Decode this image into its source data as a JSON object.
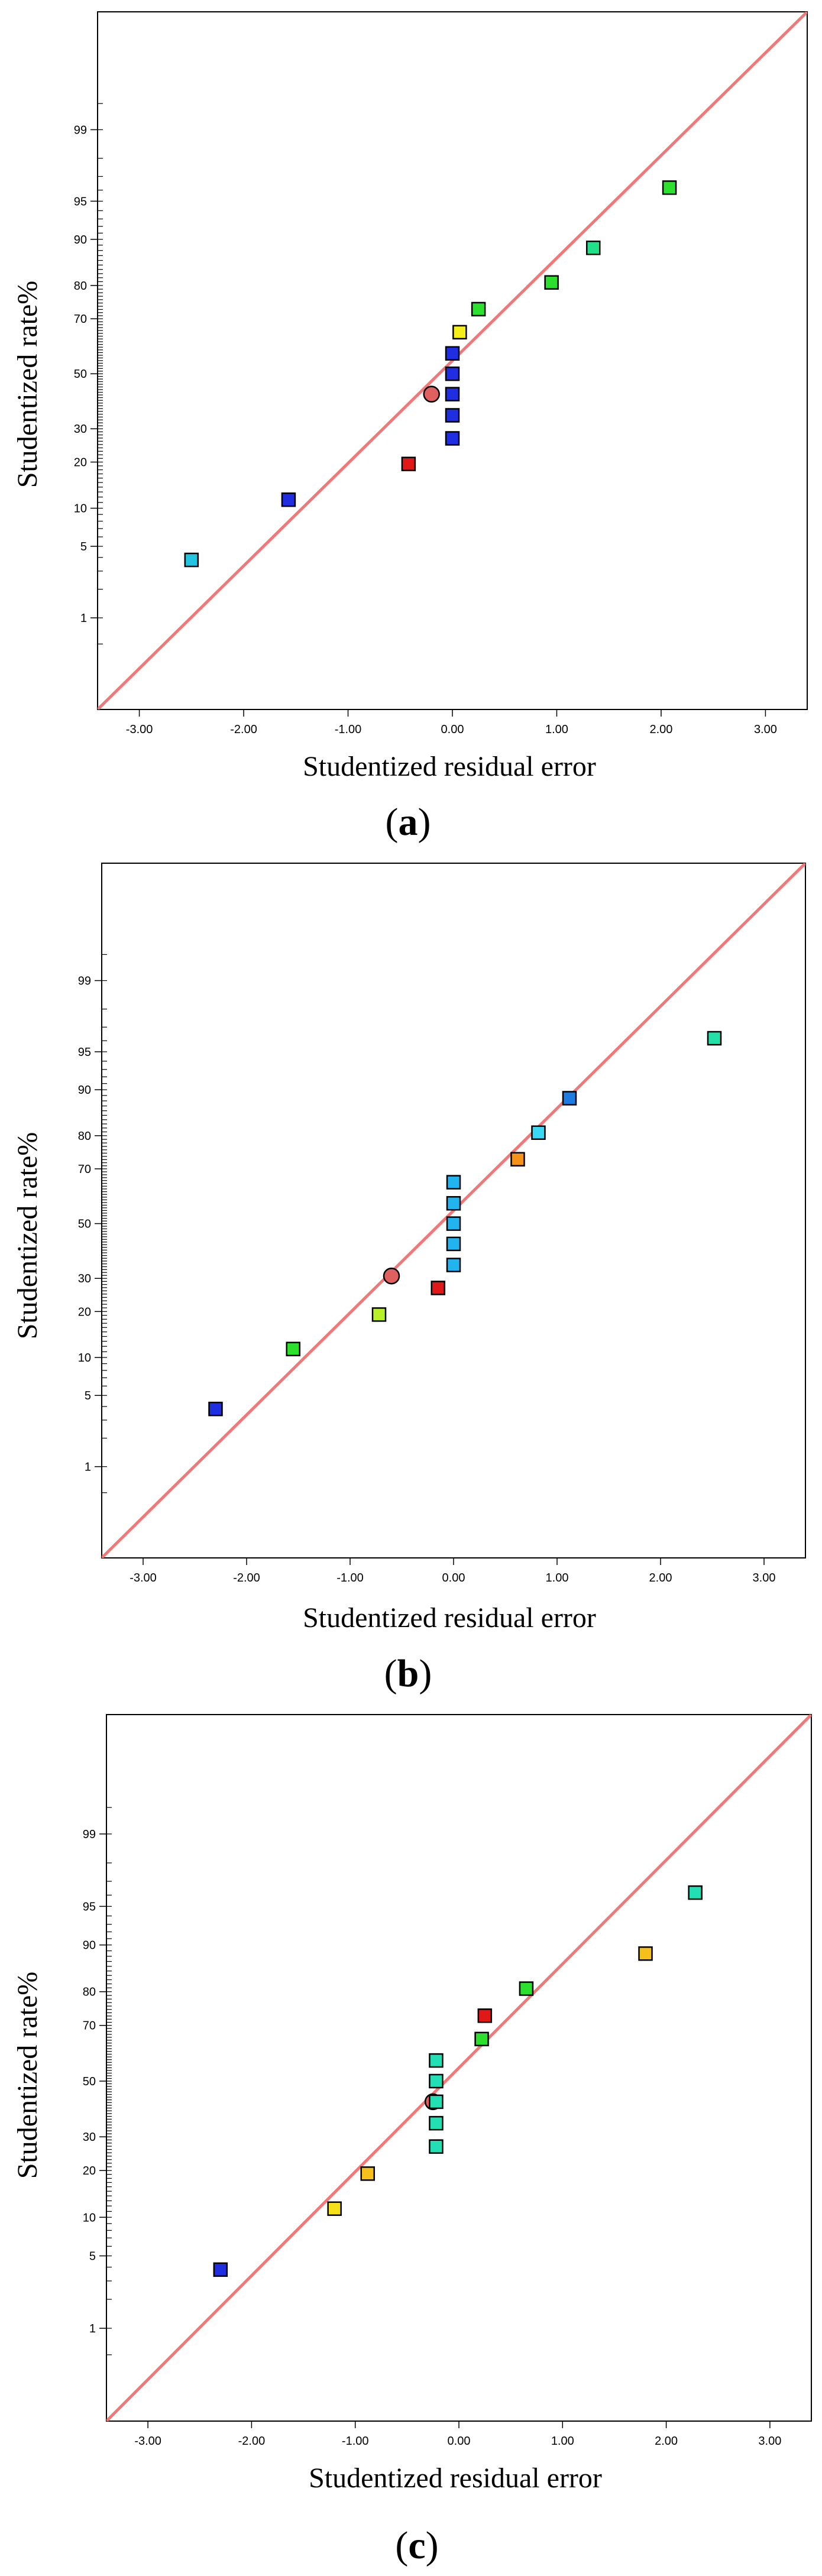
{
  "chart_data": [
    {
      "type": "scatter",
      "panel_label": "a",
      "xlabel": "Studentized residual error",
      "ylabel": "Studentized rate%",
      "xlim": [
        -3.4,
        3.4
      ],
      "x_ticks": [
        -3,
        -2,
        -1,
        0,
        1,
        2,
        3
      ],
      "x_tick_labels": [
        "-3.00",
        "-2.00",
        "-1.00",
        "0.00",
        "1.00",
        "2.00",
        "3.00"
      ],
      "y_ticks": [
        1,
        5,
        10,
        20,
        30,
        50,
        70,
        80,
        90,
        95,
        99
      ],
      "y_tick_labels": [
        "1",
        "5",
        "10",
        "20",
        "30",
        "50",
        "70",
        "80",
        "90",
        "95",
        "99"
      ],
      "fit_line": {
        "x": [
          -3.4,
          3.4
        ],
        "y": [
          -3.2,
          3.45
        ],
        "color": "#f07878"
      },
      "points": [
        {
          "x": -2.5,
          "y": 3.8,
          "color": "#22c4e0",
          "marker": "square"
        },
        {
          "x": -1.57,
          "y": 11.5,
          "color": "#1e2ee0",
          "marker": "square"
        },
        {
          "x": -0.42,
          "y": 19.5,
          "color": "#e01818",
          "marker": "square"
        },
        {
          "x": -0.2,
          "y": 42.3,
          "color": "#e06060",
          "marker": "circle"
        },
        {
          "x": 0.0,
          "y": 26.9,
          "color": "#1e2ee0",
          "marker": "square"
        },
        {
          "x": 0.0,
          "y": 34.6,
          "color": "#1e2ee0",
          "marker": "square"
        },
        {
          "x": 0.0,
          "y": 42.3,
          "color": "#1e2ee0",
          "marker": "square"
        },
        {
          "x": 0.0,
          "y": 50.0,
          "color": "#1e2ee0",
          "marker": "square"
        },
        {
          "x": 0.0,
          "y": 57.7,
          "color": "#1e2ee0",
          "marker": "square"
        },
        {
          "x": 0.07,
          "y": 65.4,
          "color": "#f5ef1a",
          "marker": "square"
        },
        {
          "x": 0.25,
          "y": 73.1,
          "color": "#2ee02e",
          "marker": "square"
        },
        {
          "x": 0.95,
          "y": 80.8,
          "color": "#2ee02e",
          "marker": "square"
        },
        {
          "x": 1.35,
          "y": 88.5,
          "color": "#22e08a",
          "marker": "square"
        },
        {
          "x": 2.08,
          "y": 96.2,
          "color": "#2ee02e",
          "marker": "square"
        }
      ]
    },
    {
      "type": "scatter",
      "panel_label": "b",
      "xlabel": "Studentized residual error",
      "ylabel": "Studentized rate%",
      "xlim": [
        -3.4,
        3.4
      ],
      "x_ticks": [
        -3,
        -2,
        -1,
        0,
        1,
        2,
        3
      ],
      "x_tick_labels": [
        "-3.00",
        "-2.00",
        "-1.00",
        "0.00",
        "1.00",
        "2.00",
        "3.00"
      ],
      "y_ticks": [
        1,
        5,
        10,
        20,
        30,
        50,
        70,
        80,
        90,
        95,
        99
      ],
      "y_tick_labels": [
        "1",
        "5",
        "10",
        "20",
        "30",
        "50",
        "70",
        "80",
        "90",
        "95",
        "99"
      ],
      "fit_line": {
        "x": [
          -3.4,
          3.4
        ],
        "y": [
          -3.2,
          3.45
        ],
        "color": "#f07878"
      },
      "points": [
        {
          "x": -2.3,
          "y": 3.8,
          "color": "#1e2ee0",
          "marker": "square"
        },
        {
          "x": -1.55,
          "y": 11.5,
          "color": "#2ee02e",
          "marker": "square"
        },
        {
          "x": -0.72,
          "y": 19.2,
          "color": "#b8f02a",
          "marker": "square"
        },
        {
          "x": -0.6,
          "y": 30.8,
          "color": "#e06060",
          "marker": "circle"
        },
        {
          "x": -0.15,
          "y": 26.9,
          "color": "#e01818",
          "marker": "square"
        },
        {
          "x": 0.0,
          "y": 34.6,
          "color": "#22b4ee",
          "marker": "square"
        },
        {
          "x": 0.0,
          "y": 42.3,
          "color": "#22b4ee",
          "marker": "square"
        },
        {
          "x": 0.0,
          "y": 50.0,
          "color": "#22b4ee",
          "marker": "square"
        },
        {
          "x": 0.0,
          "y": 57.7,
          "color": "#22b4ee",
          "marker": "square"
        },
        {
          "x": 0.0,
          "y": 65.4,
          "color": "#22b4ee",
          "marker": "square"
        },
        {
          "x": 0.62,
          "y": 73.1,
          "color": "#f5921a",
          "marker": "square"
        },
        {
          "x": 0.82,
          "y": 80.8,
          "color": "#3ad8f2",
          "marker": "square"
        },
        {
          "x": 1.12,
          "y": 88.5,
          "color": "#1e7ce0",
          "marker": "square"
        },
        {
          "x": 2.52,
          "y": 96.2,
          "color": "#22e0a8",
          "marker": "square"
        }
      ]
    },
    {
      "type": "scatter",
      "panel_label": "c",
      "xlabel": "Studentized residual error",
      "ylabel": "Studentized rate%",
      "xlim": [
        -3.4,
        3.4
      ],
      "x_ticks": [
        -3,
        -2,
        -1,
        0,
        1,
        2,
        3
      ],
      "x_tick_labels": [
        "-3.00",
        "-2.00",
        "-1.00",
        "0.00",
        "1.00",
        "2.00",
        "3.00"
      ],
      "y_ticks": [
        1,
        5,
        10,
        20,
        30,
        50,
        70,
        80,
        90,
        95,
        99
      ],
      "y_tick_labels": [
        "1",
        "5",
        "10",
        "20",
        "30",
        "50",
        "70",
        "80",
        "90",
        "95",
        "99"
      ],
      "fit_line": {
        "x": [
          -3.4,
          3.4
        ],
        "y": [
          -3.2,
          3.45
        ],
        "color": "#f07878"
      },
      "points": [
        {
          "x": -2.3,
          "y": 3.8,
          "color": "#1e2ee0",
          "marker": "square"
        },
        {
          "x": -1.2,
          "y": 11.5,
          "color": "#f5e01a",
          "marker": "square"
        },
        {
          "x": -0.88,
          "y": 19.2,
          "color": "#f5c01a",
          "marker": "square"
        },
        {
          "x": -0.22,
          "y": 26.9,
          "color": "#22e0b4",
          "marker": "square"
        },
        {
          "x": -0.22,
          "y": 34.6,
          "color": "#22e0b4",
          "marker": "square"
        },
        {
          "x": -0.25,
          "y": 42.3,
          "color": "#e06060",
          "marker": "circle"
        },
        {
          "x": -0.22,
          "y": 42.3,
          "color": "#22e0b4",
          "marker": "square"
        },
        {
          "x": -0.22,
          "y": 50.0,
          "color": "#22e0b4",
          "marker": "square"
        },
        {
          "x": -0.22,
          "y": 57.7,
          "color": "#22e0b4",
          "marker": "square"
        },
        {
          "x": 0.22,
          "y": 65.4,
          "color": "#2ee02e",
          "marker": "square"
        },
        {
          "x": 0.25,
          "y": 73.1,
          "color": "#e01818",
          "marker": "square"
        },
        {
          "x": 0.65,
          "y": 80.8,
          "color": "#2ee02e",
          "marker": "square"
        },
        {
          "x": 1.8,
          "y": 88.5,
          "color": "#f5c01a",
          "marker": "square"
        },
        {
          "x": 2.28,
          "y": 96.2,
          "color": "#22e0b4",
          "marker": "square"
        }
      ]
    }
  ]
}
